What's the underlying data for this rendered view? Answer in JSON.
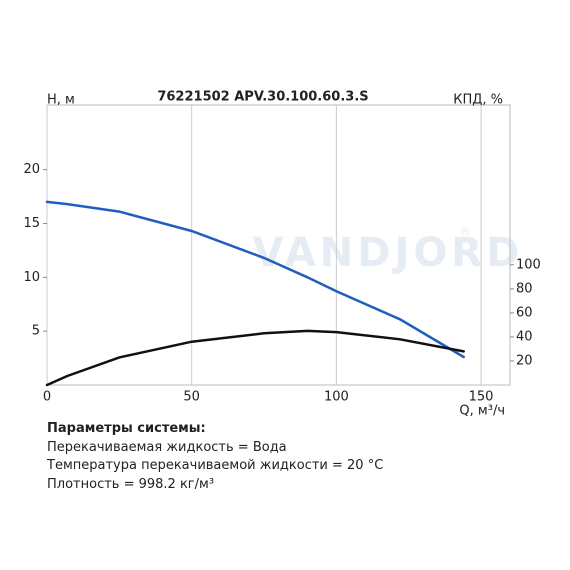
{
  "chart_data": {
    "type": "line",
    "title": "76221502 APV.30.100.60.3.S",
    "y_label": "H, м",
    "y2_label": "КПД, %",
    "x_label": "Q, м³/ч",
    "watermark": "VANDJORD",
    "watermark_mark": "®",
    "x": [
      0,
      7,
      25,
      50,
      75,
      90,
      100,
      122,
      144
    ],
    "series": [
      {
        "color": "#1f5fbf",
        "values": [
          17.0,
          16.8,
          16.1,
          14.3,
          11.8,
          10.0,
          8.7,
          6.1,
          2.6
        ]
      },
      {
        "color": "#111111",
        "axis": "y2",
        "values": [
          0,
          7.5,
          23,
          36,
          43,
          45,
          44,
          38,
          28
        ]
      }
    ],
    "xlim": [
      0,
      160
    ],
    "xticks": [
      0,
      50,
      100,
      150
    ],
    "ylim": [
      0,
      26
    ],
    "yticks": [
      5,
      10,
      15,
      20
    ],
    "y2lim": [
      0,
      233
    ],
    "y2ticks": [
      20,
      40,
      60,
      80,
      100
    ],
    "grid": "x"
  },
  "notes": {
    "heading": "Параметры системы:",
    "lines": [
      "Перекачиваемая жидкость = Вода",
      "Температура перекачиваемой жидкости = 20 °C",
      "Плотность = 998.2 кг/м³"
    ]
  }
}
